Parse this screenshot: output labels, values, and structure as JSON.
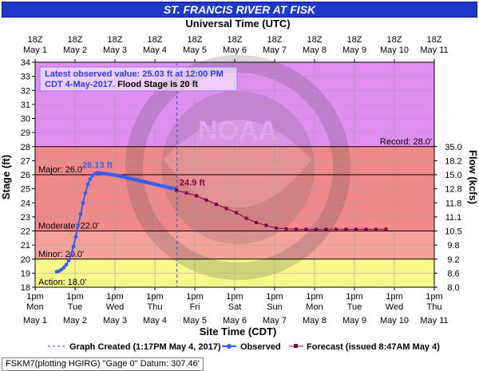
{
  "title": "ST. FRANCIS RIVER AT FISK",
  "top_axis_title": "Universal Time (UTC)",
  "bottom_axis_title": "Site Time (CDT)",
  "left_axis_title": "Stage (ft)",
  "right_axis_title": "Flow (kcfs)",
  "latest_line1": "Latest observed value: 25.03 ft at 12:00 PM",
  "latest_line2_a": "CDT 4-May-2017.",
  "latest_line2_b": " Flood Stage is 20 ft",
  "footer": "FSKM7(plotting HGIRG) \"Gage 0\" Datum: 307.46'",
  "legend": {
    "created": "Graph Created (1:17PM May 4, 2017)",
    "observed": "Observed",
    "forecast": "Forecast (issued 8:47AM May 4)"
  },
  "colors": {
    "banner": "#1f38c9",
    "major": "#f08a8a",
    "moderate": "#f08a8a",
    "minor": "#f4a29a",
    "action": "#f7f78a",
    "above_record": "#df8fef",
    "observed": "#3b5cf0",
    "forecast": "#800040"
  },
  "chart_data": {
    "type": "line",
    "x_axis": {
      "unit": "days from May 1 00:00 CDT",
      "bottom_ticks": [
        {
          "t1": "1pm",
          "t2": "Mon",
          "t3": "May 1"
        },
        {
          "t1": "1pm",
          "t2": "Tue",
          "t3": "May 2"
        },
        {
          "t1": "1pm",
          "t2": "Wed",
          "t3": "May 3"
        },
        {
          "t1": "1pm",
          "t2": "Thu",
          "t3": "May 4"
        },
        {
          "t1": "1pm",
          "t2": "Fri",
          "t3": "May 5"
        },
        {
          "t1": "1pm",
          "t2": "Sat",
          "t3": "May 6"
        },
        {
          "t1": "1pm",
          "t2": "Sun",
          "t3": "May 7"
        },
        {
          "t1": "1pm",
          "t2": "Mon",
          "t3": "May 8"
        },
        {
          "t1": "1pm",
          "t2": "Tue",
          "t3": "May 9"
        },
        {
          "t1": "1pm",
          "t2": "Wed",
          "t3": "May 10"
        },
        {
          "t1": "1pm",
          "t2": "Thu",
          "t3": "May 11"
        }
      ],
      "top_ticks": [
        {
          "t1": "18Z",
          "t2": "May 1"
        },
        {
          "t1": "18Z",
          "t2": "May 2"
        },
        {
          "t1": "18Z",
          "t2": "May 3"
        },
        {
          "t1": "18Z",
          "t2": "May 4"
        },
        {
          "t1": "18Z",
          "t2": "May 5"
        },
        {
          "t1": "18Z",
          "t2": "May 6"
        },
        {
          "t1": "18Z",
          "t2": "May 7"
        },
        {
          "t1": "18Z",
          "t2": "May 8"
        },
        {
          "t1": "18Z",
          "t2": "May 9"
        },
        {
          "t1": "18Z",
          "t2": "May 10"
        },
        {
          "t1": "18Z",
          "t2": "May 11"
        }
      ]
    },
    "y_axis": {
      "label": "Stage (ft)",
      "min": 18,
      "max": 34,
      "ticks": [
        18,
        19,
        20,
        21,
        22,
        23,
        24,
        25,
        26,
        27,
        28,
        29,
        30,
        31,
        32,
        33,
        34
      ]
    },
    "y2_axis": {
      "label": "Flow (kcfs)",
      "ticks": [
        {
          "stage": 18,
          "label": "8.0"
        },
        {
          "stage": 19,
          "label": "8.6"
        },
        {
          "stage": 20,
          "label": "9.2"
        },
        {
          "stage": 21,
          "label": "9.8"
        },
        {
          "stage": 22,
          "label": "10.5"
        },
        {
          "stage": 23,
          "label": "11.1"
        },
        {
          "stage": 24,
          "label": "11.8"
        },
        {
          "stage": 25,
          "label": "12.8"
        },
        {
          "stage": 26,
          "label": "15.0"
        },
        {
          "stage": 27,
          "label": "18.2"
        },
        {
          "stage": 28,
          "label": "35.0"
        }
      ]
    },
    "flood_categories": [
      {
        "name": "Action",
        "label": "Action: 18.0'",
        "from": 18,
        "to": 20
      },
      {
        "name": "Minor",
        "label": "Minor: 20.0'",
        "from": 20,
        "to": 22
      },
      {
        "name": "Moderate",
        "label": "Moderate: 22.0'",
        "from": 22,
        "to": 26
      },
      {
        "name": "Major",
        "label": "Major: 26.0'",
        "from": 26,
        "to": 28
      },
      {
        "name": "Record",
        "label": "Record: 28.0'",
        "from": 28,
        "to": 34
      }
    ],
    "graph_created_x": 3.554,
    "observed": {
      "name": "Observed",
      "x": [
        0.54,
        0.6,
        0.66,
        0.72,
        0.78,
        0.84,
        0.9,
        0.96,
        1.02,
        1.08,
        1.14,
        1.2,
        1.26,
        1.32,
        1.38,
        1.44,
        1.5,
        1.56,
        1.62,
        1.68,
        1.74,
        1.8,
        1.86,
        1.92,
        1.98,
        2.04,
        2.1,
        2.16,
        2.22,
        2.28,
        2.34,
        2.4,
        2.46,
        2.52,
        2.58,
        2.64,
        2.7,
        2.76,
        2.82,
        2.88,
        2.94,
        3.0,
        3.06,
        3.12,
        3.18,
        3.24,
        3.3,
        3.36,
        3.42,
        3.5
      ],
      "y": [
        19.1,
        19.15,
        19.25,
        19.4,
        19.6,
        19.9,
        20.3,
        20.9,
        21.6,
        22.4,
        23.2,
        24.0,
        24.7,
        25.3,
        25.7,
        25.95,
        26.08,
        26.13,
        26.12,
        26.1,
        26.08,
        26.05,
        26.03,
        26.0,
        25.98,
        25.95,
        25.92,
        25.88,
        25.85,
        25.8,
        25.76,
        25.72,
        25.68,
        25.64,
        25.6,
        25.56,
        25.52,
        25.48,
        25.44,
        25.4,
        25.36,
        25.32,
        25.28,
        25.24,
        25.2,
        25.16,
        25.12,
        25.08,
        25.05,
        25.03
      ],
      "peak_label": "26.13 ft",
      "peak_x": 1.56,
      "peak_y": 26.13
    },
    "forecast": {
      "name": "Forecast",
      "x": [
        3.54,
        3.79,
        4.04,
        4.29,
        4.54,
        4.79,
        5.04,
        5.29,
        5.54,
        5.79,
        6.04,
        6.29,
        6.54,
        6.79,
        7.04,
        7.29,
        7.54,
        7.79,
        8.04,
        8.29,
        8.54,
        8.79
      ],
      "y": [
        24.9,
        24.7,
        24.5,
        24.2,
        23.9,
        23.6,
        23.3,
        22.9,
        22.6,
        22.4,
        22.2,
        22.15,
        22.13,
        22.12,
        22.12,
        22.12,
        22.12,
        22.12,
        22.12,
        22.12,
        22.12,
        22.12
      ],
      "first_label": "24.9 ft"
    }
  }
}
